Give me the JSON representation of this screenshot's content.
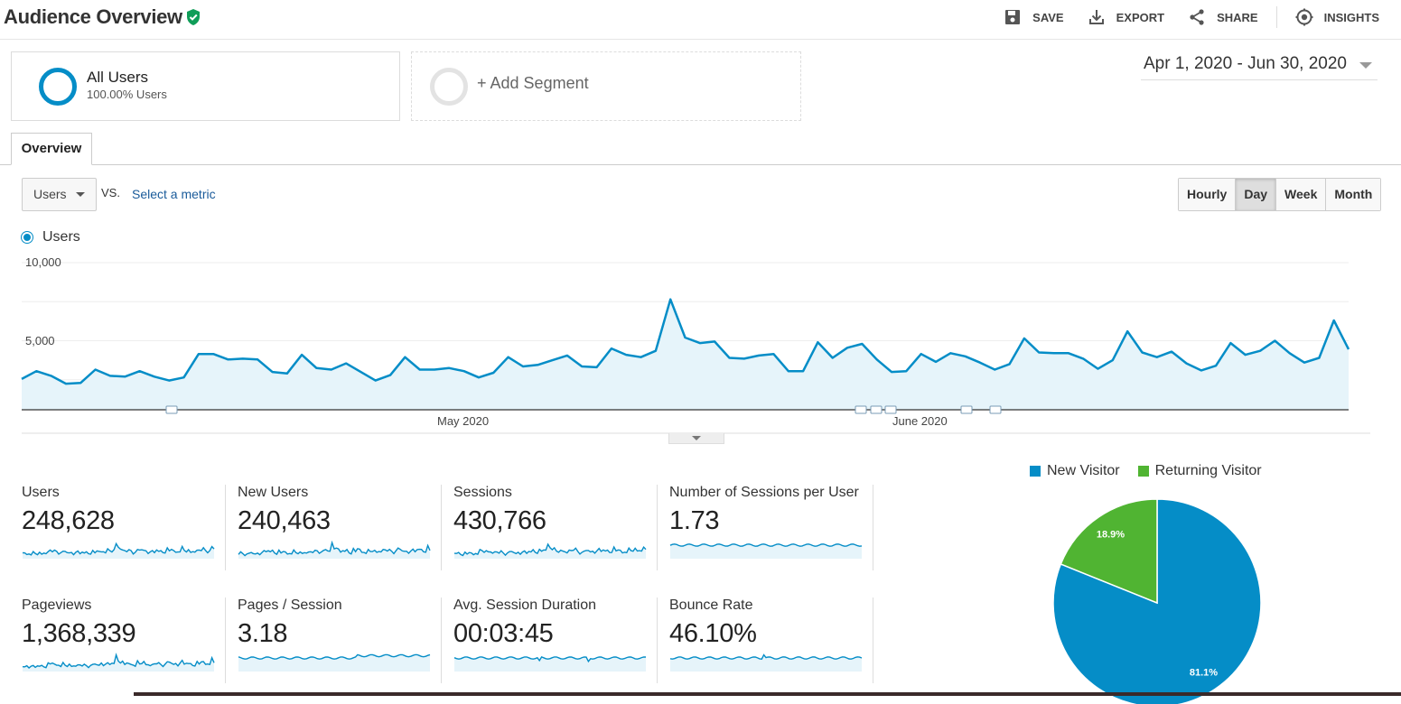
{
  "header": {
    "title": "Audience Overview",
    "actions": [
      "SAVE",
      "EXPORT",
      "SHARE",
      "INSIGHTS"
    ]
  },
  "segments": {
    "primary_name": "All Users",
    "primary_sub": "100.00% Users",
    "add_label": "+ Add Segment"
  },
  "date_range": "Apr 1, 2020 - Jun 30, 2020",
  "tabs": {
    "overview": "Overview"
  },
  "controls": {
    "metric": "Users",
    "vs": "VS.",
    "select_metric": "Select a metric",
    "granularity": [
      "Hourly",
      "Day",
      "Week",
      "Month"
    ],
    "active_granularity": "Day"
  },
  "chart_legend": "Users",
  "colors": {
    "series": "#058dc7",
    "returning": "#50b432",
    "verified": "#0f9d58"
  },
  "chart_data": {
    "type": "area",
    "series": [
      {
        "name": "Users",
        "values": [
          2550,
          3050,
          2750,
          2250,
          2300,
          3150,
          2750,
          2700,
          3050,
          2700,
          2450,
          2650,
          4150,
          4150,
          3800,
          3850,
          3800,
          3000,
          2900,
          4100,
          3250,
          3150,
          3550,
          3000,
          2450,
          2800,
          3950,
          3150,
          3150,
          3250,
          3050,
          2650,
          2950,
          3950,
          3350,
          3450,
          3750,
          4050,
          3350,
          3300,
          4500,
          4100,
          3950,
          4350,
          7650,
          5200,
          4850,
          4950,
          3900,
          3850,
          4050,
          4150,
          3050,
          3050,
          4900,
          3900,
          4550,
          4800,
          3800,
          3000,
          3050,
          4150,
          3650,
          4200,
          4000,
          3600,
          3150,
          3500,
          5150,
          4250,
          4200,
          4200,
          3850,
          3200,
          3750,
          5600,
          4250,
          3950,
          4300,
          3550,
          3100,
          3400,
          4850,
          4100,
          4350,
          5000,
          4200,
          3600,
          3900,
          6300,
          4450
        ]
      }
    ],
    "x_tick_labels": [
      "May 2020",
      "June 2020"
    ],
    "y_tick_labels": [
      "10,000",
      "5,000"
    ],
    "ylim": [
      0,
      10000
    ]
  },
  "metrics": [
    {
      "name": "Users",
      "value": "248,628"
    },
    {
      "name": "New Users",
      "value": "240,463"
    },
    {
      "name": "Sessions",
      "value": "430,766"
    },
    {
      "name": "Number of Sessions per User",
      "value": "1.73"
    },
    {
      "name": "Pageviews",
      "value": "1,368,339"
    },
    {
      "name": "Pages / Session",
      "value": "3.18"
    },
    {
      "name": "Avg. Session Duration",
      "value": "00:03:45"
    },
    {
      "name": "Bounce Rate",
      "value": "46.10%"
    }
  ],
  "pie": {
    "legend": [
      "New Visitor",
      "Returning Visitor"
    ],
    "values": [
      81.1,
      18.9
    ],
    "labels": [
      "81.1%",
      "18.9%"
    ]
  }
}
